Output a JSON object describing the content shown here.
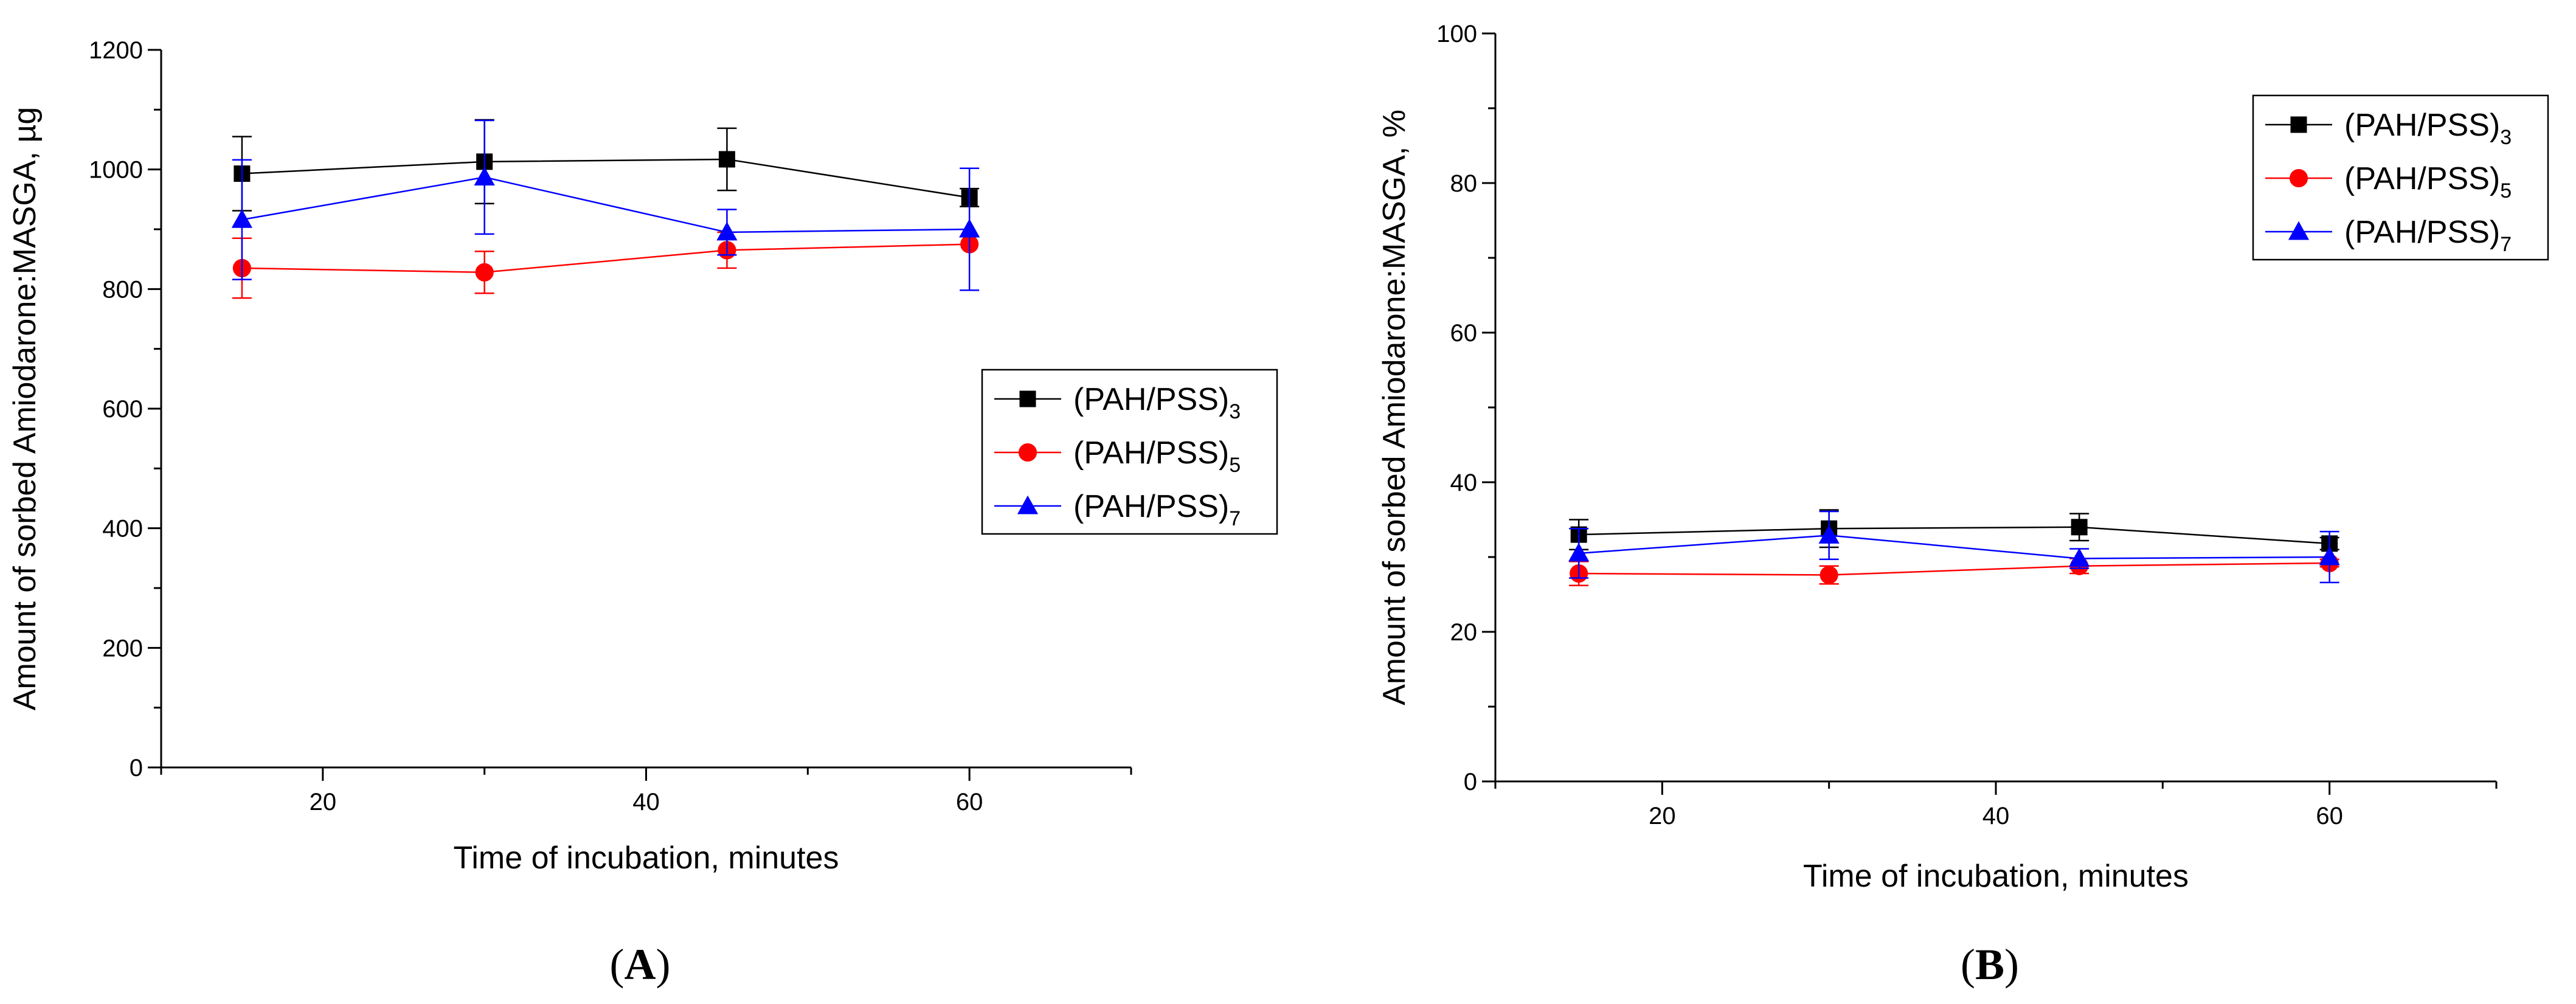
{
  "chart_data": [
    {
      "id": "A",
      "type": "line",
      "panel_label": "A",
      "xlabel": "Time of incubation, minutes",
      "ylabel": "Amount of sorbed Amiodarone:MASGA, µg",
      "xlim": [
        10,
        70
      ],
      "ylim": [
        0,
        1200
      ],
      "xticks": [
        20,
        40,
        60
      ],
      "yticks": [
        0,
        200,
        400,
        600,
        800,
        1000,
        1200
      ],
      "legend_position": "center-right",
      "x": [
        15,
        30,
        45,
        60
      ],
      "series": [
        {
          "name": "(PAH/PSS)",
          "sub": "3",
          "color": "#000000",
          "marker": "square",
          "values": [
            993,
            1013,
            1017,
            953
          ],
          "errors": [
            62,
            70,
            52,
            15
          ]
        },
        {
          "name": "(PAH/PSS)",
          "sub": "5",
          "color": "#ff0000",
          "marker": "circle",
          "values": [
            835,
            828,
            865,
            875
          ],
          "errors": [
            50,
            35,
            30,
            0
          ]
        },
        {
          "name": "(PAH/PSS)",
          "sub": "7",
          "color": "#0000ff",
          "marker": "triangle",
          "values": [
            916,
            987,
            895,
            900
          ],
          "errors": [
            100,
            95,
            38,
            102
          ]
        }
      ]
    },
    {
      "id": "B",
      "type": "line",
      "panel_label": "B",
      "xlabel": "Time of incubation, minutes",
      "ylabel": "Amount of sorbed Amiodarone:MASGA, %",
      "xlim": [
        10,
        70
      ],
      "ylim": [
        0,
        100
      ],
      "xticks": [
        20,
        40,
        60
      ],
      "yticks": [
        0,
        20,
        40,
        60,
        80,
        100
      ],
      "legend_position": "top-right",
      "x": [
        15,
        30,
        45,
        60
      ],
      "series": [
        {
          "name": "(PAH/PSS)",
          "sub": "3",
          "color": "#000000",
          "marker": "square",
          "values": [
            33.0,
            33.8,
            34.0,
            31.8
          ],
          "errors": [
            2.0,
            2.5,
            1.8,
            0.8
          ]
        },
        {
          "name": "(PAH/PSS)",
          "sub": "5",
          "color": "#ff0000",
          "marker": "circle",
          "values": [
            27.8,
            27.6,
            28.8,
            29.2
          ],
          "errors": [
            1.6,
            1.2,
            1.0,
            0.5
          ]
        },
        {
          "name": "(PAH/PSS)",
          "sub": "7",
          "color": "#0000ff",
          "marker": "triangle",
          "values": [
            30.5,
            32.9,
            29.8,
            30.0
          ],
          "errors": [
            3.3,
            3.2,
            1.3,
            3.4
          ]
        }
      ]
    }
  ]
}
